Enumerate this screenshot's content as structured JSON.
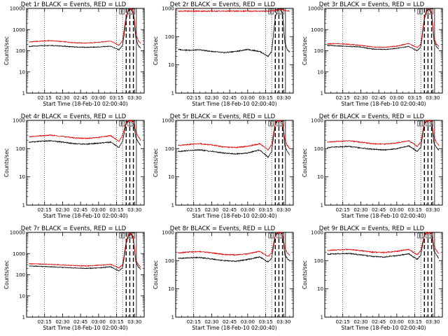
{
  "common": {
    "xlabel": "Start Time (18-Feb-10 02:00:40)",
    "ylabel": "Counts/sec",
    "xticks": [
      "02:15",
      "02:30",
      "02:45",
      "03:00",
      "03:15",
      "03:30"
    ],
    "yticks": [
      "1",
      "10",
      "100",
      "1000",
      "10000"
    ],
    "colors": {
      "events": "#000000",
      "lld": "#dd0000"
    }
  },
  "chart_data": [
    {
      "type": "line",
      "title": "Det 1r  BLACK = Events, RED = LLD",
      "ylim": [
        1,
        10000
      ],
      "x_minutes_from_0200": [
        2,
        10,
        20,
        30,
        40,
        50,
        60,
        70,
        77,
        80,
        83,
        85,
        87,
        89,
        91,
        93,
        95
      ],
      "series": [
        {
          "name": "Events",
          "values": [
            160,
            170,
            180,
            165,
            150,
            145,
            150,
            165,
            110,
            180,
            3000,
            8000,
            9000,
            6000,
            400,
            180,
            130
          ]
        },
        {
          "name": "LLD",
          "values": [
            260,
            280,
            300,
            270,
            240,
            230,
            250,
            290,
            180,
            300,
            5000,
            9000,
            9500,
            8000,
            700,
            300,
            220
          ]
        }
      ]
    },
    {
      "type": "line",
      "title": "Det 2r  BLACK = Events, RED = LLD",
      "ylim": [
        1,
        1000
      ],
      "x_minutes_from_0200": [
        2,
        10,
        20,
        30,
        40,
        50,
        60,
        70,
        77,
        80,
        83,
        85,
        87,
        89,
        91,
        93,
        95
      ],
      "series": [
        {
          "name": "Events",
          "values": [
            35,
            33,
            34,
            30,
            27,
            30,
            35,
            30,
            20,
            30,
            500,
            900,
            950,
            700,
            60,
            35,
            28
          ]
        },
        {
          "name": "LLD",
          "values": [
            800,
            800,
            800,
            800,
            800,
            800,
            800,
            800,
            800,
            800,
            850,
            900,
            950,
            900,
            850,
            820,
            800
          ]
        }
      ]
    },
    {
      "type": "line",
      "title": "Det 3r  BLACK = Events, RED = LLD",
      "ylim": [
        1,
        10000
      ],
      "x_minutes_from_0200": [
        2,
        10,
        20,
        30,
        40,
        50,
        60,
        70,
        77,
        80,
        83,
        85,
        87,
        89,
        91,
        93,
        95
      ],
      "series": [
        {
          "name": "Events",
          "values": [
            180,
            170,
            160,
            150,
            120,
            115,
            130,
            160,
            100,
            150,
            3000,
            8000,
            9000,
            6000,
            300,
            160,
            120
          ]
        },
        {
          "name": "LLD",
          "values": [
            210,
            220,
            200,
            180,
            150,
            145,
            165,
            220,
            140,
            200,
            4000,
            9000,
            9500,
            7500,
            400,
            210,
            160
          ]
        }
      ]
    },
    {
      "type": "line",
      "title": "Det 4r  BLACK = Events, RED = LLD",
      "ylim": [
        1,
        1000
      ],
      "x_minutes_from_0200": [
        2,
        10,
        20,
        30,
        40,
        50,
        60,
        70,
        77,
        80,
        83,
        85,
        87,
        89,
        91,
        93,
        95
      ],
      "series": [
        {
          "name": "Events",
          "values": [
            170,
            180,
            190,
            170,
            150,
            145,
            155,
            170,
            110,
            180,
            800,
            950,
            980,
            900,
            250,
            170,
            130
          ]
        },
        {
          "name": "LLD",
          "values": [
            260,
            280,
            300,
            270,
            240,
            230,
            250,
            290,
            180,
            300,
            850,
            980,
            990,
            950,
            400,
            270,
            200
          ]
        }
      ]
    },
    {
      "type": "line",
      "title": "Det 5r  BLACK = Events, RED = LLD",
      "ylim": [
        1,
        1000
      ],
      "x_minutes_from_0200": [
        2,
        10,
        20,
        30,
        40,
        50,
        60,
        70,
        77,
        80,
        83,
        85,
        87,
        89,
        91,
        93,
        95
      ],
      "series": [
        {
          "name": "Events",
          "values": [
            80,
            85,
            90,
            80,
            70,
            65,
            70,
            90,
            50,
            80,
            800,
            950,
            980,
            900,
            120,
            80,
            60
          ]
        },
        {
          "name": "LLD",
          "values": [
            130,
            140,
            150,
            135,
            115,
            110,
            120,
            150,
            90,
            140,
            850,
            980,
            990,
            950,
            200,
            130,
            100
          ]
        }
      ]
    },
    {
      "type": "line",
      "title": "Det 6r  BLACK = Events, RED = LLD",
      "ylim": [
        1,
        1000
      ],
      "x_minutes_from_0200": [
        2,
        10,
        20,
        30,
        40,
        50,
        60,
        70,
        77,
        80,
        83,
        85,
        87,
        89,
        91,
        93,
        95
      ],
      "series": [
        {
          "name": "Events",
          "values": [
            110,
            115,
            120,
            105,
            95,
            90,
            100,
            125,
            80,
            110,
            800,
            950,
            980,
            900,
            150,
            110,
            90
          ]
        },
        {
          "name": "LLD",
          "values": [
            170,
            180,
            190,
            170,
            150,
            145,
            160,
            190,
            120,
            170,
            850,
            980,
            990,
            950,
            250,
            170,
            130
          ]
        }
      ]
    },
    {
      "type": "line",
      "title": "Det 7r  BLACK = Events, RED = LLD",
      "ylim": [
        1,
        10000
      ],
      "x_minutes_from_0200": [
        2,
        10,
        20,
        30,
        40,
        50,
        60,
        70,
        77,
        80,
        83,
        85,
        87,
        89,
        91,
        93,
        95
      ],
      "series": [
        {
          "name": "Events",
          "values": [
            260,
            250,
            240,
            220,
            210,
            200,
            210,
            240,
            150,
            220,
            3000,
            7000,
            8000,
            5000,
            400,
            240,
            180
          ]
        },
        {
          "name": "LLD",
          "values": [
            330,
            320,
            310,
            290,
            270,
            260,
            280,
            310,
            210,
            300,
            4000,
            8000,
            9000,
            6000,
            500,
            310,
            230
          ]
        }
      ]
    },
    {
      "type": "line",
      "title": "Det 8r  BLACK = Events, RED = LLD",
      "ylim": [
        1,
        1000
      ],
      "x_minutes_from_0200": [
        2,
        10,
        20,
        30,
        40,
        50,
        60,
        70,
        77,
        80,
        83,
        85,
        87,
        89,
        91,
        93,
        95
      ],
      "series": [
        {
          "name": "Events",
          "values": [
            120,
            125,
            130,
            115,
            100,
            95,
            110,
            135,
            90,
            120,
            800,
            950,
            980,
            900,
            160,
            120,
            95
          ]
        },
        {
          "name": "LLD",
          "values": [
            190,
            200,
            210,
            190,
            165,
            160,
            175,
            215,
            140,
            190,
            850,
            980,
            990,
            950,
            260,
            190,
            150
          ]
        }
      ]
    },
    {
      "type": "line",
      "title": "Det 9r  BLACK = Events, RED = LLD",
      "ylim": [
        1,
        1000
      ],
      "x_minutes_from_0200": [
        2,
        10,
        20,
        30,
        40,
        50,
        60,
        70,
        77,
        80,
        83,
        85,
        87,
        89,
        91,
        93,
        95
      ],
      "series": [
        {
          "name": "Events",
          "values": [
            170,
            175,
            180,
            160,
            140,
            135,
            150,
            175,
            110,
            160,
            800,
            950,
            980,
            900,
            220,
            160,
            120
          ]
        },
        {
          "name": "LLD",
          "values": [
            230,
            240,
            250,
            225,
            200,
            195,
            215,
            250,
            160,
            230,
            850,
            980,
            990,
            950,
            320,
            230,
            180
          ]
        }
      ]
    }
  ]
}
